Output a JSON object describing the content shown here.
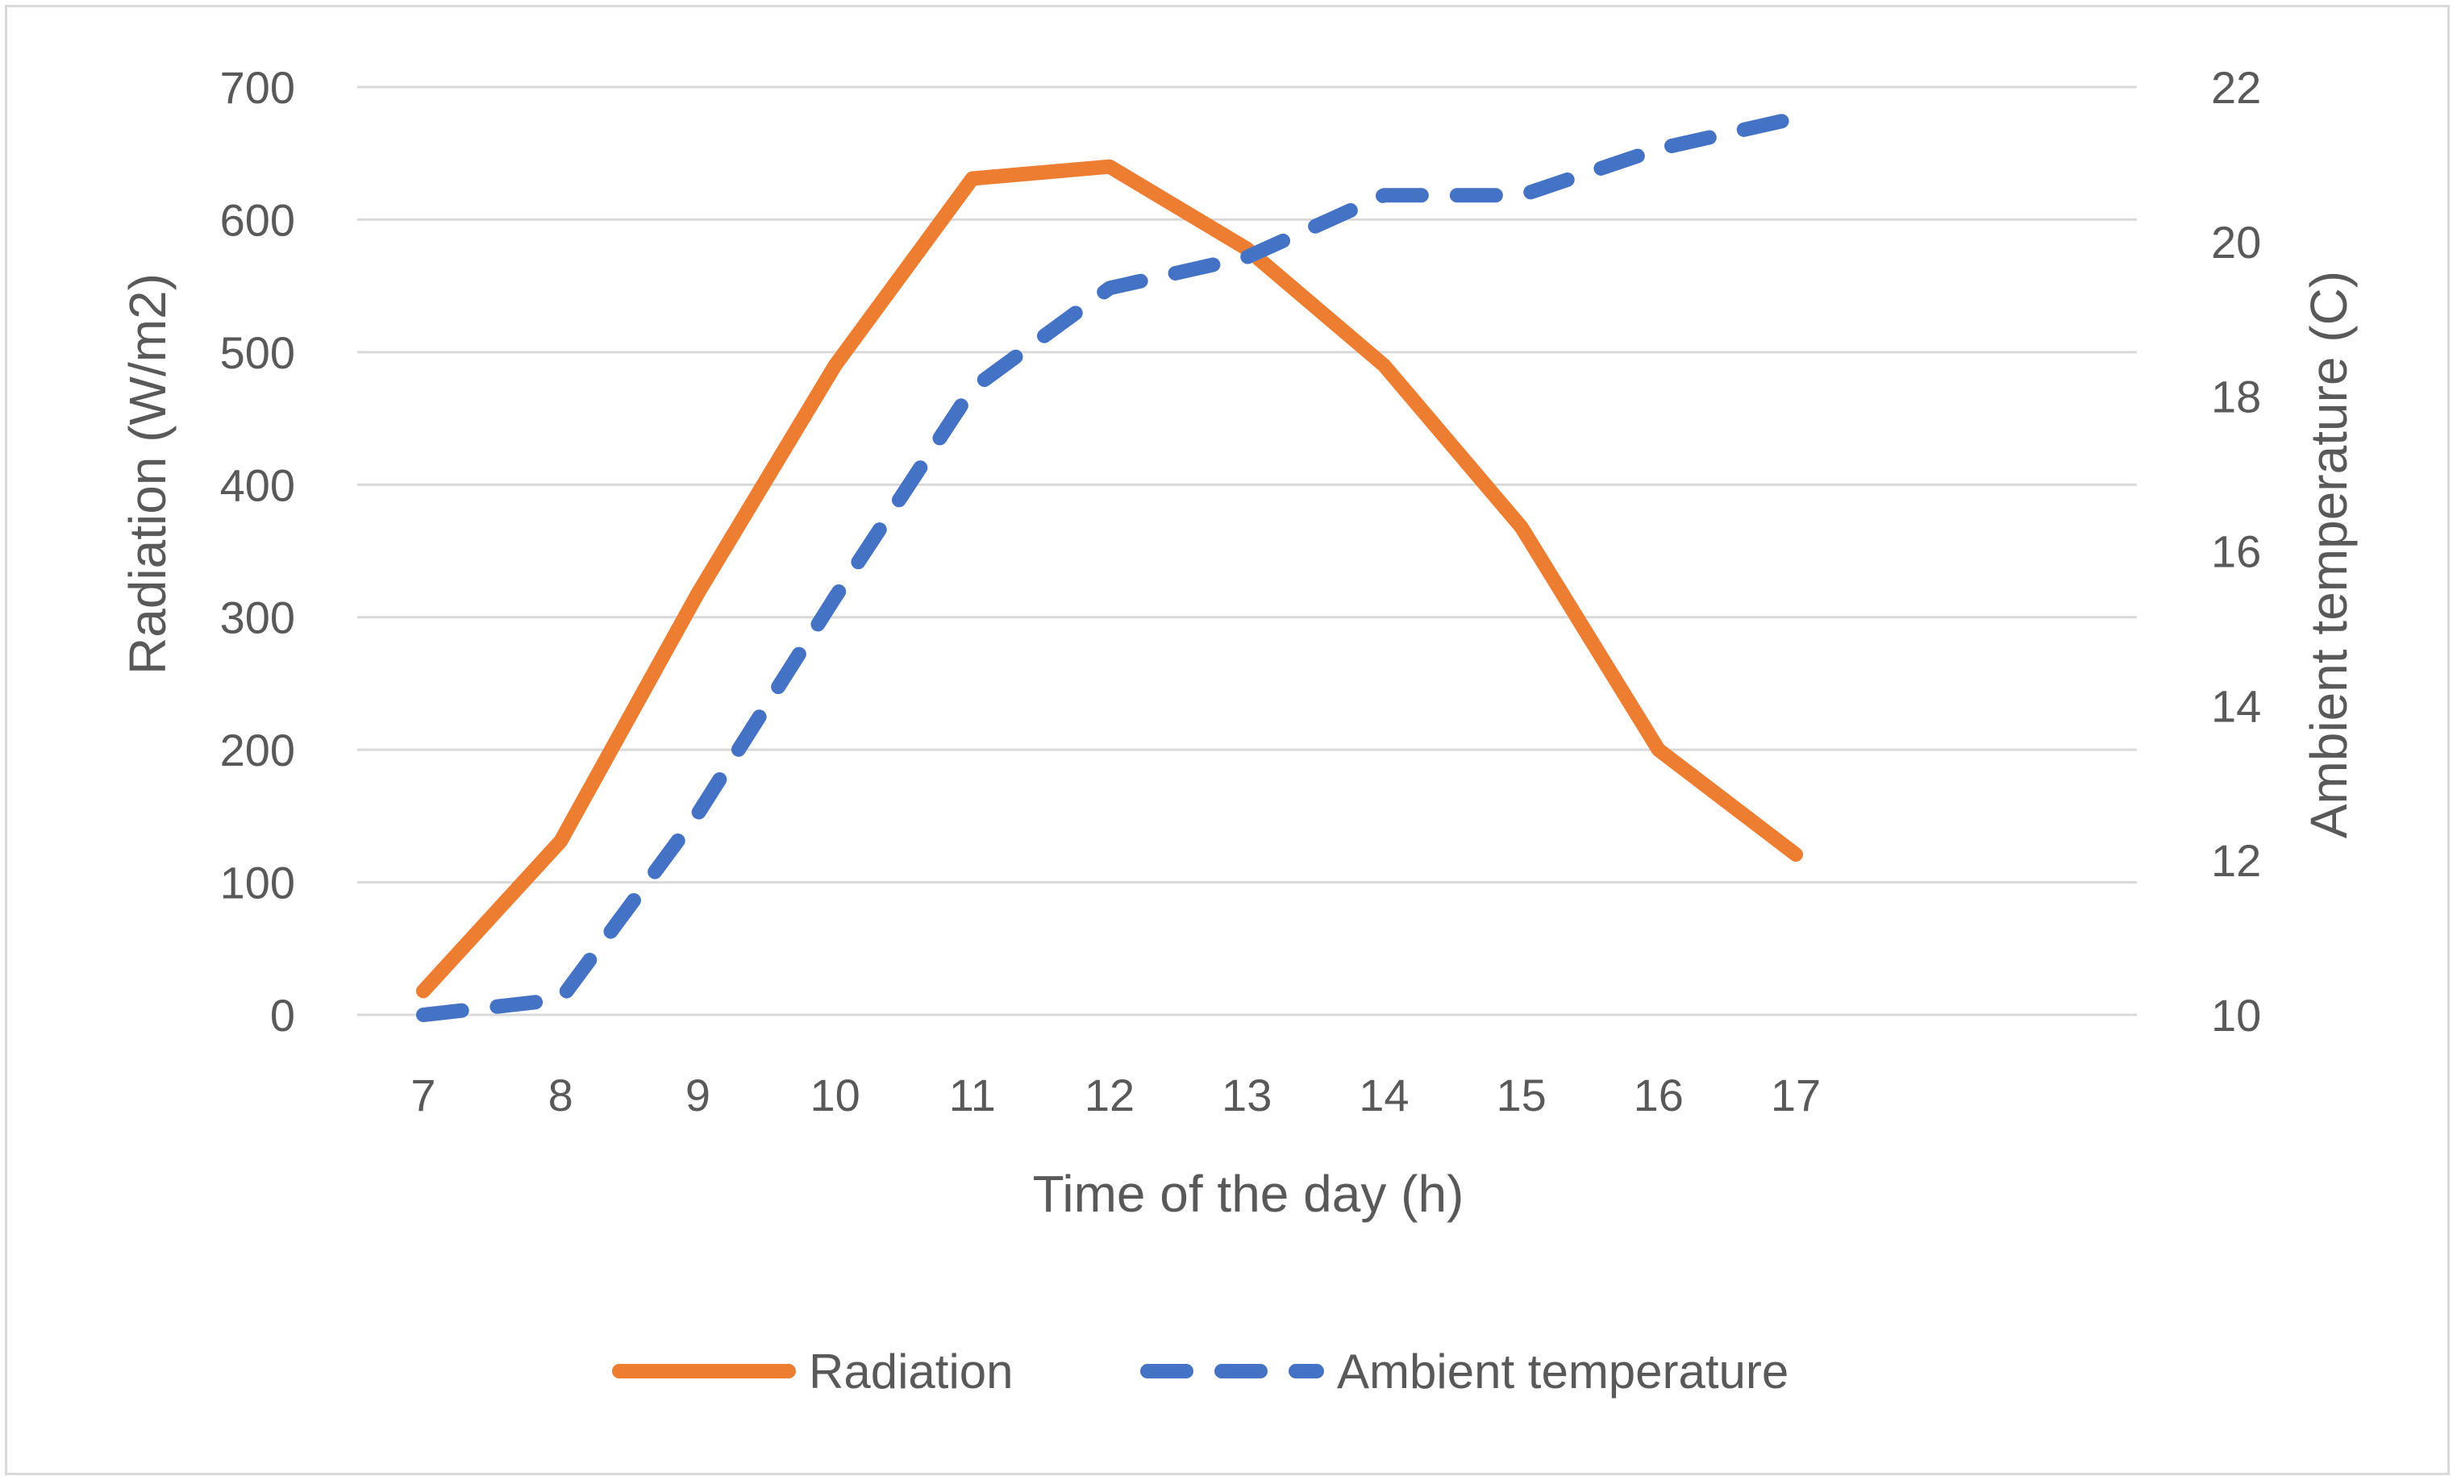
{
  "chart_data": {
    "type": "line",
    "xlabel": "Time of the day (h)",
    "ylabel": "Radiation (W/m2)",
    "y2label": "Ambient temperature (C)",
    "categories": [
      "7",
      "8",
      "9",
      "10",
      "11",
      "12",
      "13",
      "14",
      "15",
      "16",
      "17"
    ],
    "ylim": [
      0,
      700
    ],
    "y2lim": [
      10,
      22
    ],
    "yticks": [
      "0",
      "100",
      "200",
      "300",
      "400",
      "500",
      "600",
      "700"
    ],
    "y2ticks": [
      "10",
      "12",
      "14",
      "16",
      "18",
      "20",
      "22"
    ],
    "grid": true,
    "legend_position": "bottom",
    "series": [
      {
        "name": "Radiation",
        "axis": "left",
        "style": "solid",
        "color": "#ED7D31",
        "values": [
          18,
          131,
          318,
          490,
          631,
          640,
          578,
          490,
          368,
          200,
          121
        ]
      },
      {
        "name": "Ambient temperature",
        "axis": "right",
        "style": "dashed",
        "color": "#4472C4",
        "values": [
          10.0,
          10.2,
          12.6,
          15.4,
          18.1,
          19.4,
          19.8,
          20.6,
          20.6,
          21.2,
          21.6
        ]
      }
    ]
  }
}
